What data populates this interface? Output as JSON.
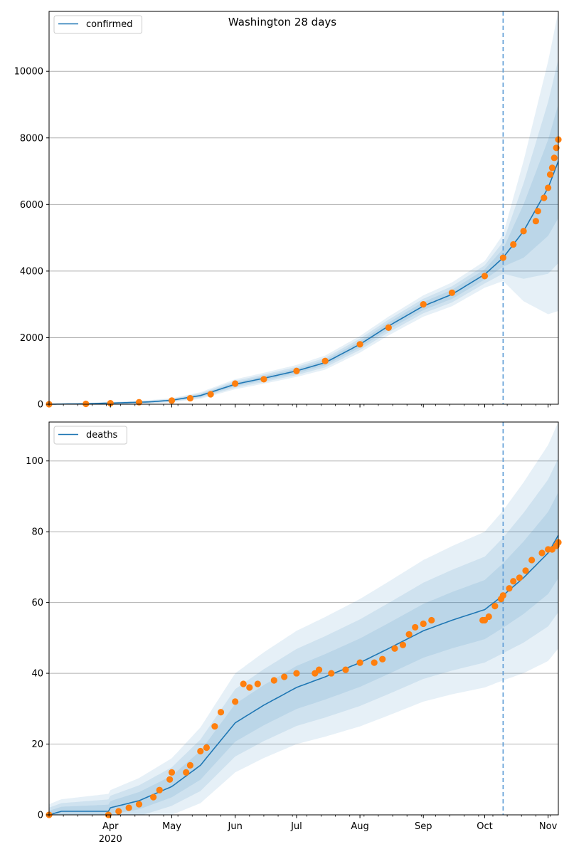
{
  "title": "Washington 28 days",
  "colors": {
    "model": "#1f77b4",
    "observed": "#ff7f0e",
    "band": "#1f77b4",
    "forecast_line": "#5b9bd5",
    "grid": "#b0b0b0"
  },
  "x_axis": {
    "start_date": "2020-03-02",
    "end_date": "2020-11-06",
    "forecast_date": "2020-10-10",
    "major_ticks": [
      {
        "date": "2020-04-01",
        "label": "Apr",
        "sublabel": "2020"
      },
      {
        "date": "2020-05-01",
        "label": "May",
        "sublabel": ""
      },
      {
        "date": "2020-06-01",
        "label": "Jun",
        "sublabel": ""
      },
      {
        "date": "2020-07-01",
        "label": "Jul",
        "sublabel": ""
      },
      {
        "date": "2020-08-01",
        "label": "Aug",
        "sublabel": ""
      },
      {
        "date": "2020-09-01",
        "label": "Sep",
        "sublabel": ""
      },
      {
        "date": "2020-10-01",
        "label": "Oct",
        "sublabel": ""
      },
      {
        "date": "2020-11-01",
        "label": "Nov",
        "sublabel": ""
      }
    ]
  },
  "chart_data": [
    {
      "type": "line",
      "title": "Washington 28 days",
      "legend": "confirmed",
      "legend_position": "top-left",
      "grid": "horizontal",
      "ylim": [
        0,
        11800
      ],
      "yticks": [
        0,
        2000,
        4000,
        6000,
        8000,
        10000
      ],
      "model_points": [
        [
          "2020-03-02",
          0
        ],
        [
          "2020-03-20",
          15
        ],
        [
          "2020-04-05",
          40
        ],
        [
          "2020-04-20",
          70
        ],
        [
          "2020-05-01",
          120
        ],
        [
          "2020-05-15",
          260
        ],
        [
          "2020-06-01",
          600
        ],
        [
          "2020-06-15",
          780
        ],
        [
          "2020-07-01",
          1000
        ],
        [
          "2020-07-15",
          1250
        ],
        [
          "2020-08-01",
          1800
        ],
        [
          "2020-08-15",
          2350
        ],
        [
          "2020-09-01",
          2950
        ],
        [
          "2020-09-15",
          3300
        ],
        [
          "2020-10-01",
          3900
        ],
        [
          "2020-10-10",
          4400
        ],
        [
          "2020-10-20",
          5200
        ],
        [
          "2020-11-01",
          6500
        ],
        [
          "2020-11-06",
          7300
        ]
      ],
      "band_half_widths": [
        [
          "2020-03-02",
          10
        ],
        [
          "2020-05-01",
          60
        ],
        [
          "2020-06-01",
          150
        ],
        [
          "2020-07-01",
          180
        ],
        [
          "2020-08-01",
          250
        ],
        [
          "2020-09-01",
          320
        ],
        [
          "2020-10-01",
          400
        ],
        [
          "2020-10-10",
          700
        ],
        [
          "2020-11-06",
          4500
        ]
      ],
      "observed_points": [
        [
          "2020-03-02",
          0
        ],
        [
          "2020-03-20",
          10
        ],
        [
          "2020-04-01",
          30
        ],
        [
          "2020-04-15",
          60
        ],
        [
          "2020-05-01",
          110
        ],
        [
          "2020-05-10",
          180
        ],
        [
          "2020-05-20",
          300
        ],
        [
          "2020-06-01",
          620
        ],
        [
          "2020-06-15",
          750
        ],
        [
          "2020-07-01",
          1000
        ],
        [
          "2020-07-15",
          1300
        ],
        [
          "2020-08-01",
          1800
        ],
        [
          "2020-08-15",
          2300
        ],
        [
          "2020-09-01",
          3000
        ],
        [
          "2020-09-15",
          3350
        ],
        [
          "2020-10-01",
          3850
        ],
        [
          "2020-10-10",
          4400
        ],
        [
          "2020-10-15",
          4800
        ],
        [
          "2020-10-20",
          5200
        ],
        [
          "2020-10-26",
          5500
        ],
        [
          "2020-10-27",
          5800
        ],
        [
          "2020-10-30",
          6200
        ],
        [
          "2020-11-01",
          6500
        ],
        [
          "2020-11-02",
          6900
        ],
        [
          "2020-11-03",
          7100
        ],
        [
          "2020-11-04",
          7400
        ],
        [
          "2020-11-05",
          7700
        ],
        [
          "2020-11-06",
          7950
        ]
      ]
    },
    {
      "type": "line",
      "legend": "deaths",
      "legend_position": "top-left",
      "grid": "horizontal",
      "ylim": [
        0,
        111
      ],
      "yticks": [
        0,
        20,
        40,
        60,
        80,
        100
      ],
      "model_points": [
        [
          "2020-03-02",
          0
        ],
        [
          "2020-03-08",
          1
        ],
        [
          "2020-03-31",
          1
        ],
        [
          "2020-04-01",
          2
        ],
        [
          "2020-04-15",
          4
        ],
        [
          "2020-05-01",
          8
        ],
        [
          "2020-05-15",
          14
        ],
        [
          "2020-06-01",
          26
        ],
        [
          "2020-06-15",
          31
        ],
        [
          "2020-07-01",
          36
        ],
        [
          "2020-07-15",
          39
        ],
        [
          "2020-08-01",
          43
        ],
        [
          "2020-08-15",
          47
        ],
        [
          "2020-09-01",
          52
        ],
        [
          "2020-09-15",
          55
        ],
        [
          "2020-10-01",
          58
        ],
        [
          "2020-10-10",
          62
        ],
        [
          "2020-10-20",
          67
        ],
        [
          "2020-11-01",
          74
        ],
        [
          "2020-11-06",
          79
        ]
      ],
      "band_half_widths": [
        [
          "2020-03-02",
          3
        ],
        [
          "2020-04-01",
          5
        ],
        [
          "2020-05-01",
          8
        ],
        [
          "2020-06-01",
          14
        ],
        [
          "2020-07-01",
          16
        ],
        [
          "2020-08-01",
          18
        ],
        [
          "2020-09-01",
          20
        ],
        [
          "2020-10-01",
          22
        ],
        [
          "2020-10-10",
          24
        ],
        [
          "2020-11-06",
          32
        ]
      ],
      "observed_points": [
        [
          "2020-03-02",
          0
        ],
        [
          "2020-03-31",
          0
        ],
        [
          "2020-04-05",
          1
        ],
        [
          "2020-04-10",
          2
        ],
        [
          "2020-04-15",
          3
        ],
        [
          "2020-04-22",
          5
        ],
        [
          "2020-04-25",
          7
        ],
        [
          "2020-04-30",
          10
        ],
        [
          "2020-05-01",
          12
        ],
        [
          "2020-05-08",
          12
        ],
        [
          "2020-05-10",
          14
        ],
        [
          "2020-05-15",
          18
        ],
        [
          "2020-05-18",
          19
        ],
        [
          "2020-05-22",
          25
        ],
        [
          "2020-05-25",
          29
        ],
        [
          "2020-06-01",
          32
        ],
        [
          "2020-06-05",
          37
        ],
        [
          "2020-06-08",
          36
        ],
        [
          "2020-06-12",
          37
        ],
        [
          "2020-06-20",
          38
        ],
        [
          "2020-06-25",
          39
        ],
        [
          "2020-07-01",
          40
        ],
        [
          "2020-07-10",
          40
        ],
        [
          "2020-07-12",
          41
        ],
        [
          "2020-07-18",
          40
        ],
        [
          "2020-07-25",
          41
        ],
        [
          "2020-08-01",
          43
        ],
        [
          "2020-08-08",
          43
        ],
        [
          "2020-08-12",
          44
        ],
        [
          "2020-08-18",
          47
        ],
        [
          "2020-08-22",
          48
        ],
        [
          "2020-08-25",
          51
        ],
        [
          "2020-08-28",
          53
        ],
        [
          "2020-09-01",
          54
        ],
        [
          "2020-09-05",
          55
        ],
        [
          "2020-09-30",
          55
        ],
        [
          "2020-10-01",
          55
        ],
        [
          "2020-10-03",
          56
        ],
        [
          "2020-10-06",
          59
        ],
        [
          "2020-10-09",
          61
        ],
        [
          "2020-10-10",
          62
        ],
        [
          "2020-10-13",
          64
        ],
        [
          "2020-10-15",
          66
        ],
        [
          "2020-10-18",
          67
        ],
        [
          "2020-10-21",
          69
        ],
        [
          "2020-10-24",
          72
        ],
        [
          "2020-10-29",
          74
        ],
        [
          "2020-11-01",
          75
        ],
        [
          "2020-11-03",
          75
        ],
        [
          "2020-11-05",
          76
        ],
        [
          "2020-11-06",
          77
        ]
      ]
    }
  ]
}
